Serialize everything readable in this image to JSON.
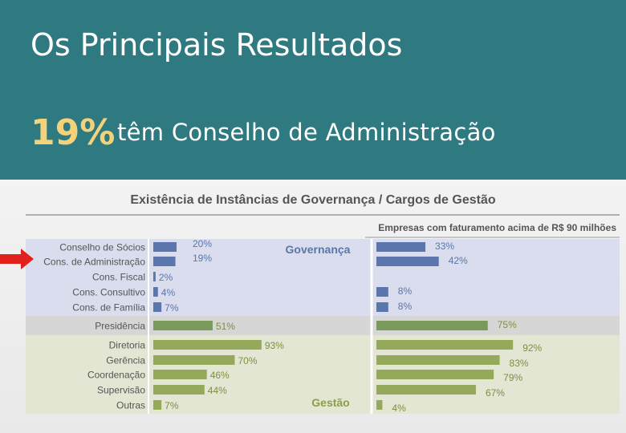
{
  "slide": {
    "title": "Os Principais Resultados",
    "stat_value": "19%",
    "stat_text": "têm Conselho de Administração"
  },
  "colors": {
    "header_bg": "#2f7a80",
    "stat_highlight": "#f3d27a",
    "governanca_bar": "#5b76ad",
    "gestao_bar": "#94a95a",
    "presidencia_bar": "#7a9a5c",
    "arrow": "#e3211c"
  },
  "chart_data": {
    "type": "bar",
    "orientation": "horizontal",
    "title": "Existência de Instâncias de Governança / Cargos de Gestão",
    "right_subtitle": "Empresas com faturamento acima de R$ 90 milhões",
    "groups": [
      {
        "name": "Governança",
        "categories": [
          "Conselho de Sócios",
          "Cons. de Administração",
          "Cons. Fiscal",
          "Cons. Consultivo",
          "Cons. de Família"
        ]
      },
      {
        "name": "",
        "categories": [
          "Presidência"
        ]
      },
      {
        "name": "Gestão",
        "categories": [
          "Diretoria",
          "Gerência",
          "Coordenação",
          "Supervisão",
          "Outras"
        ]
      }
    ],
    "categories": [
      "Conselho de Sócios",
      "Cons. de Administração",
      "Cons. Fiscal",
      "Cons. Consultivo",
      "Cons. de Família",
      "Presidência",
      "Diretoria",
      "Gerência",
      "Coordenação",
      "Supervisão",
      "Outras"
    ],
    "series": [
      {
        "values": [
          20,
          19,
          2,
          4,
          7,
          51,
          93,
          70,
          46,
          44,
          7
        ],
        "labels": [
          "20%",
          "19%",
          "2%",
          "4%",
          "7%",
          "51%",
          "93%",
          "70%",
          "46%",
          "44%",
          "7%"
        ]
      },
      {
        "name": "Empresas com faturamento acima de R$ 90 milhões",
        "values": [
          33,
          42,
          null,
          8,
          8,
          75,
          92,
          83,
          79,
          67,
          4
        ],
        "labels": [
          "33%",
          "42%",
          "",
          "8%",
          "8%",
          "75%",
          "92%",
          "83%",
          "79%",
          "67%",
          "4%"
        ]
      }
    ],
    "highlighted_category": "Cons. de Administração",
    "xlim": [
      0,
      100
    ],
    "unit": "%",
    "grid": false
  }
}
